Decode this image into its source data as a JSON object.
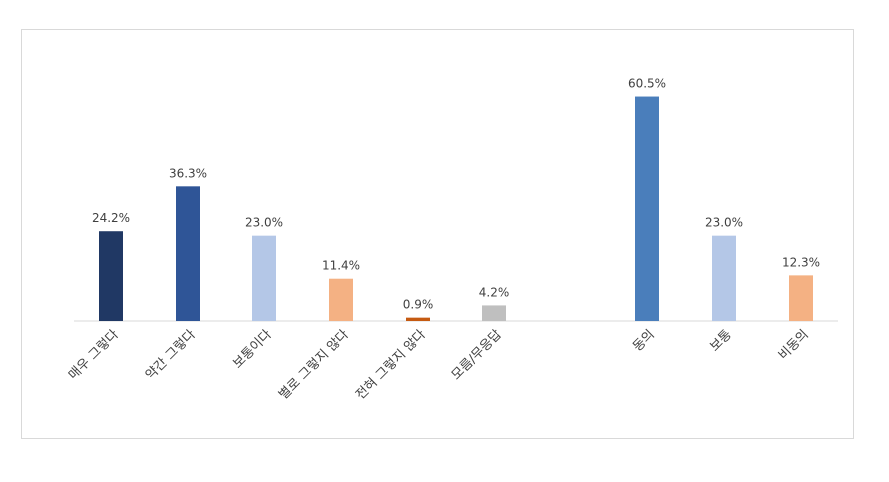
{
  "chart_data": {
    "type": "bar",
    "categories": [
      "매우 그렇다",
      "약간 그렇다",
      "보통이다",
      "별로 그렇지 않다",
      "전혀 그렇지 않다",
      "모름/무응답",
      "동의",
      "보통",
      "비동의"
    ],
    "values": [
      24.2,
      36.3,
      23.0,
      11.4,
      0.9,
      4.2,
      60.5,
      23.0,
      12.3
    ],
    "value_labels": [
      "24.2%",
      "36.3%",
      "23.0%",
      "11.4%",
      "0.9%",
      "4.2%",
      "60.5%",
      "23.0%",
      "12.3%"
    ],
    "colors": [
      "#203864",
      "#2F5597",
      "#B4C7E7",
      "#F4B183",
      "#C55A11",
      "#BFBFBF",
      "#4A7EBB",
      "#B4C7E7",
      "#F4B183"
    ],
    "ylim": [
      0,
      70
    ],
    "grid": false,
    "legend": "none",
    "title": "",
    "xlabel": "",
    "ylabel": ""
  }
}
